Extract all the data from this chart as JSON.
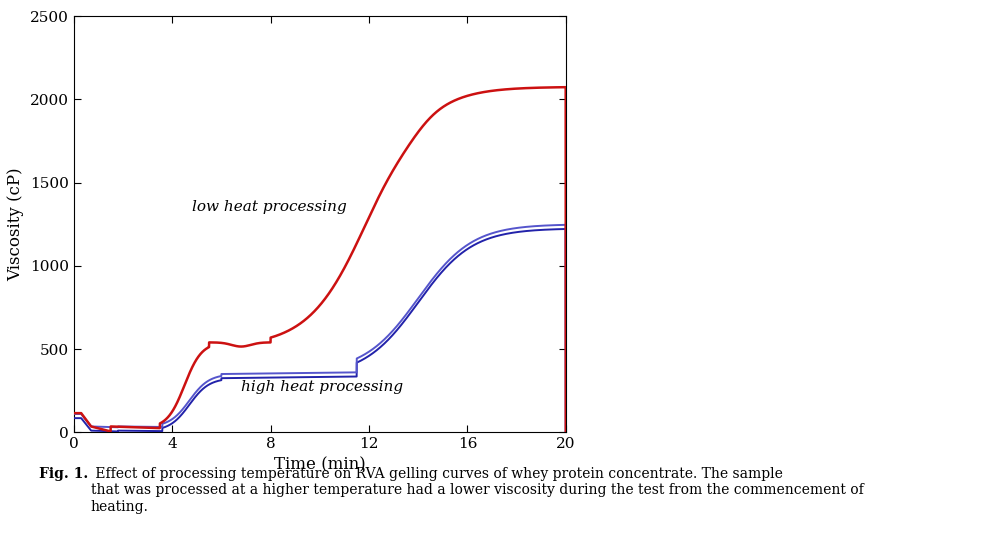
{
  "xlabel": "Time (min)",
  "ylabel": "Viscosity (cP)",
  "xlim": [
    0,
    20
  ],
  "ylim": [
    0,
    2500
  ],
  "xticks": [
    0,
    4,
    8,
    12,
    16,
    20
  ],
  "yticks": [
    0,
    500,
    1000,
    1500,
    2000,
    2500
  ],
  "caption_bold": "Fig. 1.",
  "caption_text": " Effect of processing temperature on RVA gelling curves of whey protein concentrate. The sample\nthat was processed at a higher temperature had a lower viscosity during the test from the commencement of\nheating.",
  "label_low": "low heat processing",
  "label_high": "high heat processing",
  "color_red": "#cc1111",
  "color_blue1": "#2222aa",
  "color_blue2": "#5555cc",
  "background_color": "#ffffff"
}
